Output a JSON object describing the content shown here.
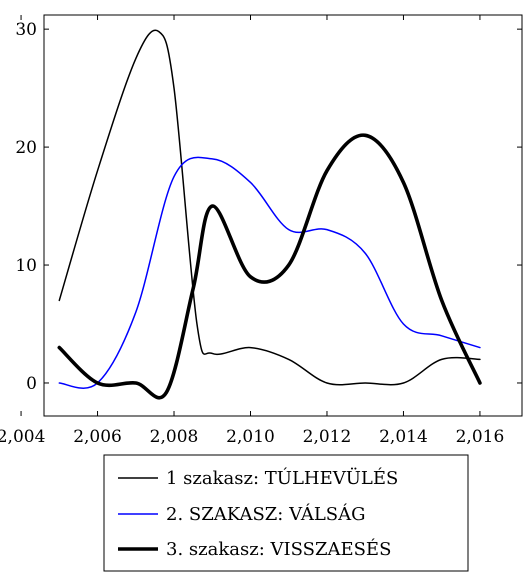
{
  "chart_data": {
    "type": "line",
    "xlim": [
      2004.6,
      2017.1
    ],
    "ylim": [
      -2.8,
      31.2
    ],
    "xticks": [
      2004,
      2006,
      2008,
      2010,
      2012,
      2014,
      2016
    ],
    "xtick_labels": [
      "2,004",
      "2,006",
      "2,008",
      "2,010",
      "2,012",
      "2,014",
      "2,016"
    ],
    "yticks": [
      0,
      10,
      20,
      30
    ],
    "ytick_labels": [
      "0",
      "10",
      "20",
      "30"
    ],
    "grid": false,
    "legend_position": "bottom-center",
    "series": [
      {
        "name": "1 szakasz: TÚLHEVÜLÉS",
        "color": "#000000",
        "width": "thin",
        "x": [
          2005,
          2006,
          2007,
          2007.6,
          2008,
          2008.6,
          2009,
          2010,
          2011,
          2012,
          2013,
          2014,
          2015,
          2016
        ],
        "y": [
          7,
          18,
          27.5,
          29.8,
          25,
          5,
          2.5,
          3,
          2,
          0,
          0,
          0,
          2,
          2
        ]
      },
      {
        "name": "2. SZAKASZ: VÁLSÁG",
        "color": "#0000ff",
        "width": "thin",
        "x": [
          2005,
          2006,
          2007,
          2008,
          2009,
          2010,
          2011,
          2012,
          2013,
          2014,
          2015,
          2016
        ],
        "y": [
          0,
          0,
          6,
          17.5,
          19,
          17,
          13,
          13,
          11,
          5,
          4,
          3
        ]
      },
      {
        "name": "3. szakasz: VISSZAESÉS",
        "color": "#000000",
        "width": "thick",
        "x": [
          2005,
          2006,
          2007,
          2007.8,
          2008.5,
          2009,
          2010,
          2011,
          2012,
          2013,
          2014,
          2015,
          2016
        ],
        "y": [
          3,
          0,
          0,
          -0.8,
          8,
          15,
          9,
          10,
          18,
          21,
          17,
          7,
          0
        ]
      }
    ]
  }
}
